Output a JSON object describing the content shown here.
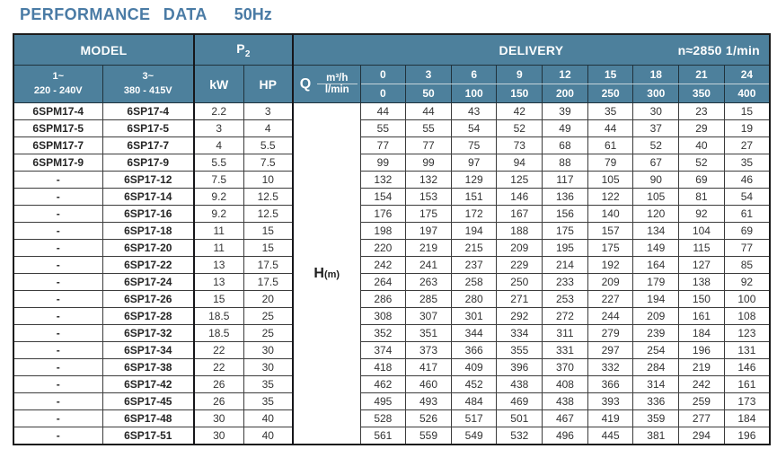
{
  "title": {
    "main": "PERFORMANCE DATA",
    "freq": "50Hz"
  },
  "colors": {
    "header_bg": "#4d809c",
    "title_text": "#4a7ba5",
    "outer_border": "#1c1c1c"
  },
  "table": {
    "header": {
      "model": "MODEL",
      "p2_label": "P",
      "p2_sub": "2",
      "delivery": "DELIVERY",
      "speed": "n≈2850 1/min",
      "model_cols": [
        {
          "phase": "1~",
          "voltage": "220 - 240V"
        },
        {
          "phase": "3~",
          "voltage": "380 - 415V"
        }
      ],
      "kw": "kW",
      "hp": "HP",
      "q_label": "Q",
      "q_units": {
        "m3h": "m³/h",
        "lmin": "l/min"
      },
      "flow_m3h": [
        "0",
        "3",
        "6",
        "9",
        "12",
        "15",
        "18",
        "21",
        "24"
      ],
      "flow_lmin": [
        "0",
        "50",
        "100",
        "150",
        "200",
        "250",
        "300",
        "350",
        "400"
      ]
    },
    "h_label": "H",
    "h_sub": "(m)",
    "rows": [
      {
        "model_1ph": "6SPM17-4",
        "model_3ph": "6SP17-4",
        "kw": "2.2",
        "hp": "3",
        "head": [
          44,
          44,
          43,
          42,
          39,
          35,
          30,
          23,
          15
        ]
      },
      {
        "model_1ph": "6SPM17-5",
        "model_3ph": "6SP17-5",
        "kw": "3",
        "hp": "4",
        "head": [
          55,
          55,
          54,
          52,
          49,
          44,
          37,
          29,
          19
        ]
      },
      {
        "model_1ph": "6SPM17-7",
        "model_3ph": "6SP17-7",
        "kw": "4",
        "hp": "5.5",
        "head": [
          77,
          77,
          75,
          73,
          68,
          61,
          52,
          40,
          27
        ]
      },
      {
        "model_1ph": "6SPM17-9",
        "model_3ph": "6SP17-9",
        "kw": "5.5",
        "hp": "7.5",
        "head": [
          99,
          99,
          97,
          94,
          88,
          79,
          67,
          52,
          35
        ]
      },
      {
        "model_1ph": "-",
        "model_3ph": "6SP17-12",
        "kw": "7.5",
        "hp": "10",
        "head": [
          132,
          132,
          129,
          125,
          117,
          105,
          90,
          69,
          46
        ]
      },
      {
        "model_1ph": "-",
        "model_3ph": "6SP17-14",
        "kw": "9.2",
        "hp": "12.5",
        "head": [
          154,
          153,
          151,
          146,
          136,
          122,
          105,
          81,
          54
        ]
      },
      {
        "model_1ph": "-",
        "model_3ph": "6SP17-16",
        "kw": "9.2",
        "hp": "12.5",
        "head": [
          176,
          175,
          172,
          167,
          156,
          140,
          120,
          92,
          61
        ]
      },
      {
        "model_1ph": "-",
        "model_3ph": "6SP17-18",
        "kw": "11",
        "hp": "15",
        "head": [
          198,
          197,
          194,
          188,
          175,
          157,
          134,
          104,
          69
        ]
      },
      {
        "model_1ph": "-",
        "model_3ph": "6SP17-20",
        "kw": "11",
        "hp": "15",
        "head": [
          220,
          219,
          215,
          209,
          195,
          175,
          149,
          115,
          77
        ]
      },
      {
        "model_1ph": "-",
        "model_3ph": "6SP17-22",
        "kw": "13",
        "hp": "17.5",
        "head": [
          242,
          241,
          237,
          229,
          214,
          192,
          164,
          127,
          85
        ]
      },
      {
        "model_1ph": "-",
        "model_3ph": "6SP17-24",
        "kw": "13",
        "hp": "17.5",
        "head": [
          264,
          263,
          258,
          250,
          233,
          209,
          179,
          138,
          92
        ]
      },
      {
        "model_1ph": "-",
        "model_3ph": "6SP17-26",
        "kw": "15",
        "hp": "20",
        "head": [
          286,
          285,
          280,
          271,
          253,
          227,
          194,
          150,
          100
        ]
      },
      {
        "model_1ph": "-",
        "model_3ph": "6SP17-28",
        "kw": "18.5",
        "hp": "25",
        "head": [
          308,
          307,
          301,
          292,
          272,
          244,
          209,
          161,
          108
        ]
      },
      {
        "model_1ph": "-",
        "model_3ph": "6SP17-32",
        "kw": "18.5",
        "hp": "25",
        "head": [
          352,
          351,
          344,
          334,
          311,
          279,
          239,
          184,
          123
        ]
      },
      {
        "model_1ph": "-",
        "model_3ph": "6SP17-34",
        "kw": "22",
        "hp": "30",
        "head": [
          374,
          373,
          366,
          355,
          331,
          297,
          254,
          196,
          131
        ]
      },
      {
        "model_1ph": "-",
        "model_3ph": "6SP17-38",
        "kw": "22",
        "hp": "30",
        "head": [
          418,
          417,
          409,
          396,
          370,
          332,
          284,
          219,
          146
        ]
      },
      {
        "model_1ph": "-",
        "model_3ph": "6SP17-42",
        "kw": "26",
        "hp": "35",
        "head": [
          462,
          460,
          452,
          438,
          408,
          366,
          314,
          242,
          161
        ]
      },
      {
        "model_1ph": "-",
        "model_3ph": "6SP17-45",
        "kw": "26",
        "hp": "35",
        "head": [
          495,
          493,
          484,
          469,
          438,
          393,
          336,
          259,
          173
        ]
      },
      {
        "model_1ph": "-",
        "model_3ph": "6SP17-48",
        "kw": "30",
        "hp": "40",
        "head": [
          528,
          526,
          517,
          501,
          467,
          419,
          359,
          277,
          184
        ]
      },
      {
        "model_1ph": "-",
        "model_3ph": "6SP17-51",
        "kw": "30",
        "hp": "40",
        "head": [
          561,
          559,
          549,
          532,
          496,
          445,
          381,
          294,
          196
        ]
      }
    ]
  }
}
